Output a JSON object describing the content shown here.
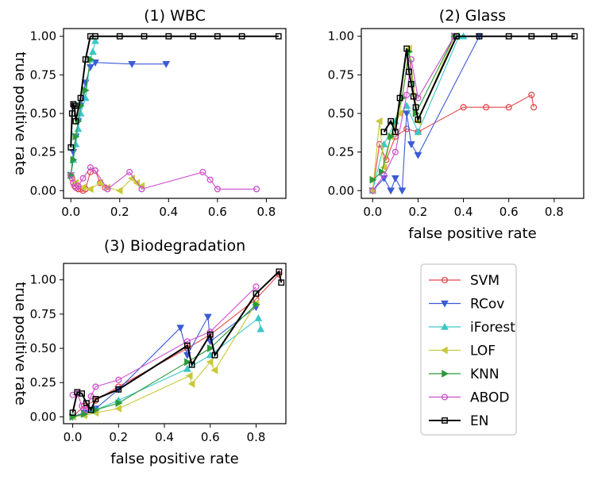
{
  "colors": {
    "SVM": "#e8474c",
    "RCov": "#3b5bd6",
    "iForest": "#3cc7c7",
    "LOF": "#c9c93a",
    "KNN": "#2a9a3a",
    "ABOD": "#cc4fcc",
    "EN": "#000000"
  },
  "markers": {
    "SVM": "circle",
    "RCov": "triangle-down",
    "iForest": "triangle-up",
    "LOF": "triangle-left",
    "KNN": "triangle-right",
    "ABOD": "circle",
    "EN": "square"
  },
  "legend": {
    "placement": "lower-right",
    "entries": [
      "SVM",
      "RCov",
      "iForest",
      "LOF",
      "KNN",
      "ABOD",
      "EN"
    ]
  },
  "chart_data": [
    {
      "type": "line",
      "title": "(1) WBC",
      "xlabel": "",
      "ylabel": "true positive rate",
      "xlim": [
        -0.03,
        0.88
      ],
      "ylim": [
        -0.05,
        1.05
      ],
      "xticks": [
        "0.0",
        "0.2",
        "0.4",
        "0.6",
        "0.8"
      ],
      "yticks": [
        "0.00",
        "0.25",
        "0.50",
        "0.75",
        "1.00"
      ],
      "grid": false,
      "series": [
        {
          "name": "SVM",
          "x": [
            0.0,
            0.005,
            0.01,
            0.015,
            0.02,
            0.03,
            0.04,
            0.05,
            0.06,
            0.08,
            0.1,
            0.12,
            0.14
          ],
          "y": [
            0.1,
            0.08,
            0.05,
            0.03,
            0.02,
            0.01,
            0.01,
            0.0,
            0.01,
            0.12,
            0.13,
            0.05,
            0.02
          ]
        },
        {
          "name": "RCov",
          "x": [
            0.0,
            0.01,
            0.02,
            0.03,
            0.04,
            0.06,
            0.08,
            0.1,
            0.25,
            0.39
          ],
          "y": [
            0.1,
            0.25,
            0.35,
            0.45,
            0.55,
            0.7,
            0.8,
            0.83,
            0.82,
            0.82
          ]
        },
        {
          "name": "iForest",
          "x": [
            0.0,
            0.01,
            0.02,
            0.03,
            0.04,
            0.06,
            0.08,
            0.09,
            0.1
          ],
          "y": [
            0.1,
            0.2,
            0.3,
            0.4,
            0.5,
            0.6,
            0.85,
            0.9,
            0.97
          ]
        },
        {
          "name": "LOF",
          "x": [
            0.0,
            0.02,
            0.05,
            0.08,
            0.12,
            0.15,
            0.2,
            0.25,
            0.27,
            0.29
          ],
          "y": [
            0.1,
            0.05,
            0.02,
            0.01,
            0.05,
            0.02,
            0.0,
            0.08,
            0.05,
            0.03
          ]
        },
        {
          "name": "KNN",
          "x": [
            0.0,
            0.01,
            0.02,
            0.03,
            0.04,
            0.06,
            0.08
          ],
          "y": [
            0.1,
            0.2,
            0.35,
            0.45,
            0.55,
            0.65,
            0.85
          ]
        },
        {
          "name": "ABOD",
          "x": [
            0.0,
            0.01,
            0.02,
            0.03,
            0.05,
            0.08,
            0.1,
            0.15,
            0.24,
            0.29,
            0.54,
            0.57,
            0.6,
            0.76
          ],
          "y": [
            0.1,
            0.05,
            0.02,
            0.03,
            0.08,
            0.15,
            0.13,
            0.01,
            0.12,
            0.01,
            0.12,
            0.07,
            0.01,
            0.01
          ]
        },
        {
          "name": "EN",
          "x": [
            0.0,
            0.005,
            0.01,
            0.015,
            0.02,
            0.04,
            0.06,
            0.08,
            0.1,
            0.2,
            0.3,
            0.4,
            0.5,
            0.6,
            0.7,
            0.85
          ],
          "y": [
            0.28,
            0.5,
            0.56,
            0.55,
            0.45,
            0.6,
            0.85,
            1.0,
            1.0,
            1.0,
            1.0,
            1.0,
            1.0,
            1.0,
            1.0,
            1.0
          ]
        }
      ]
    },
    {
      "type": "line",
      "title": "(2) Glass",
      "xlabel": "false positive rate",
      "ylabel": "",
      "xlim": [
        -0.05,
        0.93
      ],
      "ylim": [
        -0.05,
        1.05
      ],
      "xticks": [
        "0.0",
        "0.2",
        "0.4",
        "0.6",
        "0.8"
      ],
      "yticks": [
        "0.00",
        "0.25",
        "0.50",
        "0.75",
        "1.00"
      ],
      "grid": false,
      "series": [
        {
          "name": "SVM",
          "x": [
            0.0,
            0.03,
            0.06,
            0.1,
            0.15,
            0.2,
            0.4,
            0.5,
            0.6,
            0.7,
            0.71
          ],
          "y": [
            0.0,
            0.3,
            0.2,
            0.35,
            0.4,
            0.38,
            0.54,
            0.54,
            0.54,
            0.62,
            0.54
          ]
        },
        {
          "name": "RCov",
          "x": [
            0.0,
            0.05,
            0.08,
            0.1,
            0.13,
            0.15,
            0.17,
            0.2,
            0.47
          ],
          "y": [
            0.0,
            0.08,
            0.0,
            0.08,
            0.0,
            0.5,
            0.3,
            0.23,
            1.0
          ]
        },
        {
          "name": "iForest",
          "x": [
            0.0,
            0.05,
            0.1,
            0.15,
            0.2,
            0.38,
            0.4
          ],
          "y": [
            0.0,
            0.3,
            0.45,
            0.55,
            0.38,
            1.0,
            1.0
          ]
        },
        {
          "name": "LOF",
          "x": [
            0.0,
            0.03,
            0.05,
            0.08,
            0.12,
            0.16,
            0.2,
            0.36
          ],
          "y": [
            0.0,
            0.45,
            0.15,
            0.35,
            0.5,
            0.92,
            0.45,
            1.0
          ]
        },
        {
          "name": "KNN",
          "x": [
            0.0,
            0.04,
            0.08,
            0.13,
            0.16,
            0.19,
            0.36
          ],
          "y": [
            0.07,
            0.12,
            0.35,
            0.6,
            0.9,
            0.5,
            1.0
          ]
        },
        {
          "name": "ABOD",
          "x": [
            0.0,
            0.05,
            0.1,
            0.15,
            0.17,
            0.2,
            0.36
          ],
          "y": [
            0.0,
            0.1,
            0.25,
            0.62,
            0.85,
            0.6,
            1.0
          ]
        },
        {
          "name": "EN",
          "x": [
            0.05,
            0.08,
            0.1,
            0.12,
            0.15,
            0.16,
            0.17,
            0.18,
            0.19,
            0.2,
            0.37,
            0.47,
            0.6,
            0.7,
            0.8,
            0.89
          ],
          "y": [
            0.38,
            0.45,
            0.38,
            0.6,
            0.92,
            0.77,
            0.69,
            0.61,
            0.54,
            0.46,
            1.0,
            1.0,
            1.0,
            1.0,
            1.0,
            1.0
          ]
        }
      ]
    },
    {
      "type": "line",
      "title": "(3) Biodegradation",
      "xlabel": "false positive rate",
      "ylabel": "true positive rate",
      "xlim": [
        -0.04,
        0.93
      ],
      "ylim": [
        -0.05,
        1.12
      ],
      "xticks": [
        "0.0",
        "0.2",
        "0.4",
        "0.6",
        "0.8"
      ],
      "yticks": [
        "0.00",
        "0.25",
        "0.50",
        "0.75",
        "1.00"
      ],
      "grid": false,
      "series": [
        {
          "name": "SVM",
          "x": [
            0.0,
            0.05,
            0.1,
            0.2,
            0.5,
            0.6,
            0.8,
            0.9
          ],
          "y": [
            0.0,
            0.08,
            0.12,
            0.22,
            0.5,
            0.6,
            0.86,
            1.04
          ]
        },
        {
          "name": "RCov",
          "x": [
            0.0,
            0.05,
            0.1,
            0.2,
            0.47,
            0.5,
            0.59,
            0.6,
            0.8
          ],
          "y": [
            0.0,
            0.03,
            0.06,
            0.2,
            0.65,
            0.45,
            0.73,
            0.55,
            0.8
          ]
        },
        {
          "name": "iForest",
          "x": [
            0.0,
            0.05,
            0.1,
            0.2,
            0.5,
            0.6,
            0.81,
            0.82
          ],
          "y": [
            0.0,
            0.02,
            0.05,
            0.12,
            0.35,
            0.45,
            0.72,
            0.64
          ]
        },
        {
          "name": "LOF",
          "x": [
            0.0,
            0.05,
            0.1,
            0.2,
            0.51,
            0.52,
            0.6,
            0.62,
            0.8
          ],
          "y": [
            0.0,
            0.01,
            0.03,
            0.06,
            0.3,
            0.24,
            0.4,
            0.34,
            0.83
          ]
        },
        {
          "name": "KNN",
          "x": [
            0.0,
            0.05,
            0.1,
            0.2,
            0.5,
            0.6,
            0.8
          ],
          "y": [
            0.0,
            0.02,
            0.05,
            0.1,
            0.4,
            0.5,
            0.82
          ]
        },
        {
          "name": "ABOD",
          "x": [
            0.0,
            0.02,
            0.04,
            0.06,
            0.08,
            0.1,
            0.2,
            0.5,
            0.6,
            0.8
          ],
          "y": [
            0.16,
            0.17,
            0.08,
            0.05,
            0.15,
            0.22,
            0.27,
            0.55,
            0.62,
            0.95
          ]
        },
        {
          "name": "EN",
          "x": [
            0.0,
            0.02,
            0.04,
            0.06,
            0.08,
            0.1,
            0.2,
            0.5,
            0.52,
            0.6,
            0.62,
            0.8,
            0.9,
            0.91
          ],
          "y": [
            0.03,
            0.18,
            0.17,
            0.1,
            0.05,
            0.13,
            0.2,
            0.52,
            0.38,
            0.6,
            0.45,
            0.9,
            1.06,
            0.98
          ]
        }
      ]
    }
  ]
}
